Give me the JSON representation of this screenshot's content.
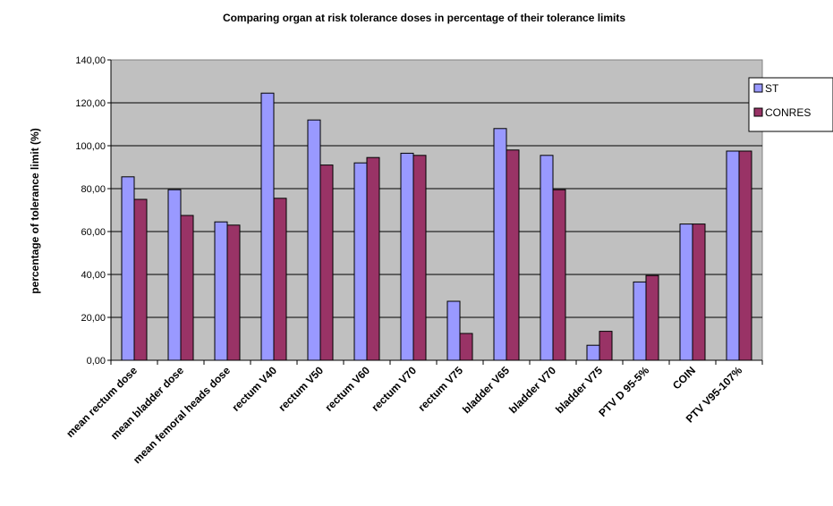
{
  "chart_data": {
    "type": "bar",
    "title": "Comparing organ at risk tolerance doses in percentage of their tolerance limits",
    "xlabel": "",
    "ylabel": "percentage of tolerance limit (%)",
    "ylim": [
      0,
      140
    ],
    "yticks": [
      "0,00",
      "20,00",
      "40,00",
      "60,00",
      "80,00",
      "100,00",
      "120,00",
      "140,00"
    ],
    "categories": [
      "mean rectum dose",
      "mean bladder dose",
      "mean femoral heads dose",
      "rectum V40",
      "rectum V50",
      "rectum V60",
      "rectum V70",
      "rectum V75",
      "bladder V65",
      "bladder V70",
      "bladder V75",
      "PTV D 95-5%",
      "COIN",
      "PTV V95-107%"
    ],
    "series": [
      {
        "name": "ST",
        "color": "#9999ff",
        "values": [
          85.5,
          79.5,
          64.5,
          124.5,
          112,
          92,
          96.5,
          27.5,
          108,
          95.5,
          7,
          36.5,
          63.5,
          97.5
        ]
      },
      {
        "name": "CONRES",
        "color": "#993366",
        "values": [
          75,
          67.5,
          63,
          75.5,
          91,
          94.5,
          95.5,
          12.5,
          98,
          79.5,
          13.5,
          39.5,
          63.5,
          97.5
        ]
      }
    ],
    "grid": true,
    "legend_position": "right",
    "plot_background": "#c0c0c0"
  }
}
